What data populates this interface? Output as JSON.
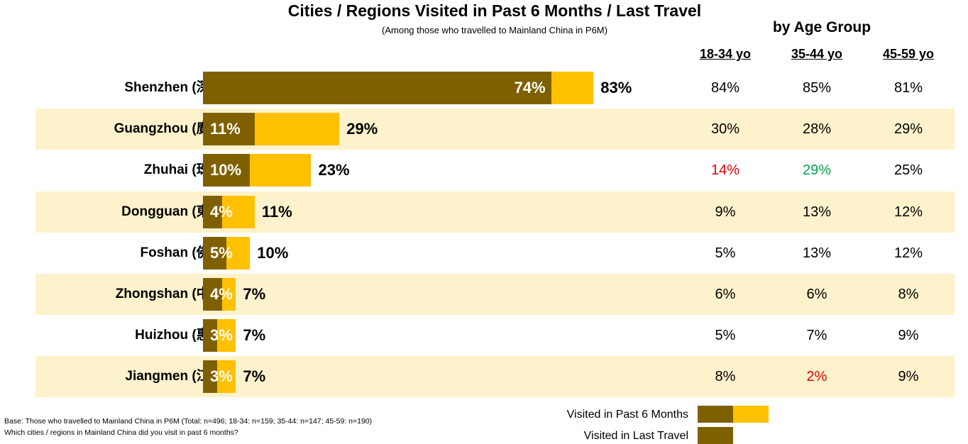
{
  "title": "Cities / Regions Visited in Past 6 Months / Last Travel",
  "subtitle": "(Among those who travelled to Mainland China in P6M)",
  "age_group_title": "by Age Group",
  "age_headers": [
    "18-34 yo",
    "35-44 yo",
    "45-59 yo"
  ],
  "colors": {
    "p6m_bar": "#ffc000",
    "last_travel_bar": "#7f6000",
    "shaded_row": "#fef2cc",
    "low_flag": "#e00000",
    "high_flag": "#00a651"
  },
  "chart_data": {
    "type": "bar",
    "orientation": "horizontal",
    "categories": [
      "Shenzhen (深圳)",
      "Guangzhou (廣州)",
      "Zhuhai (珠海)",
      "Dongguan (東莞)",
      "Foshan (佛山)",
      "Zhongshan (中山)",
      "Huizhou (惠州)",
      "Jiangmen (江門)"
    ],
    "series": [
      {
        "name": "Visited in Past 6 Months",
        "values": [
          83,
          29,
          23,
          11,
          10,
          7,
          7,
          7
        ],
        "labels": [
          "83%",
          "29%",
          "23%",
          "11%",
          "10%",
          "7%",
          "7%",
          "7%"
        ]
      },
      {
        "name": "Visited in Last Travel",
        "values": [
          74,
          11,
          10,
          4,
          5,
          4,
          3,
          3
        ],
        "labels": [
          "74%",
          "11%",
          "10%",
          "4%",
          "5%",
          "4%",
          "3%",
          "3%"
        ]
      }
    ],
    "age_table": [
      [
        "84%",
        "85%",
        "81%"
      ],
      [
        "30%",
        "28%",
        "29%"
      ],
      [
        "14%",
        "29%",
        "25%"
      ],
      [
        "9%",
        "13%",
        "12%"
      ],
      [
        "5%",
        "13%",
        "12%"
      ],
      [
        "6%",
        "6%",
        "8%"
      ],
      [
        "5%",
        "7%",
        "9%"
      ],
      [
        "8%",
        "2%",
        "9%"
      ]
    ],
    "age_table_flags": [
      [
        "",
        "",
        ""
      ],
      [
        "",
        "",
        ""
      ],
      [
        "low",
        "high",
        ""
      ],
      [
        "",
        "",
        ""
      ],
      [
        "",
        "",
        ""
      ],
      [
        "",
        "",
        ""
      ],
      [
        "",
        "",
        ""
      ],
      [
        "",
        "low",
        ""
      ]
    ],
    "xlim": [
      0,
      100
    ]
  },
  "legend": {
    "p6m": "Visited in Past 6 Months",
    "last": "Visited in Last Travel"
  },
  "footnotes": [
    "Base: Those who travelled to Mainland China in P6M (Total: n=496; 18-34: n=159; 35-44: n=147; 45-59: n=190)",
    "Which cities / regions in Mainland China did you visit in past 6 months?"
  ]
}
